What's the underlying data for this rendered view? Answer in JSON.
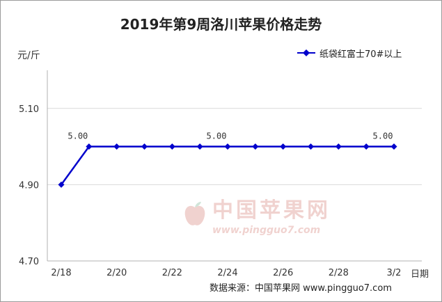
{
  "chart_data": {
    "type": "line",
    "title": "2019年第9周洛川苹果价格走势",
    "ylabel": "元/斤",
    "xlabel": "日期",
    "ylim": [
      4.7,
      5.2
    ],
    "yticks": [
      "4.70",
      "4.90",
      "5.10"
    ],
    "grid": true,
    "legend_position": "top-right",
    "xticks": [
      "2/18",
      "2/20",
      "2/22",
      "2/24",
      "2/26",
      "2/28",
      "3/2"
    ],
    "x": [
      "2/18",
      "2/19",
      "2/20",
      "2/21",
      "2/22",
      "2/23",
      "2/24",
      "2/25",
      "2/26",
      "2/27",
      "2/28",
      "3/1",
      "3/2"
    ],
    "series": [
      {
        "name": "纸袋红富士70#以上",
        "values": [
          4.9,
          5.0,
          5.0,
          5.0,
          5.0,
          5.0,
          5.0,
          5.0,
          5.0,
          5.0,
          5.0,
          5.0,
          5.0
        ],
        "color": "#0000cc"
      }
    ],
    "data_labels": [
      {
        "index": 1,
        "text": "5.00"
      },
      {
        "index": 6,
        "text": "5.00"
      },
      {
        "index": 12,
        "text": "5.00"
      }
    ]
  },
  "source_text": "数据来源：中国苹果网 www.pingguo7.com",
  "watermark": {
    "name": "中国苹果网",
    "url": "www.pingguo7.com"
  }
}
